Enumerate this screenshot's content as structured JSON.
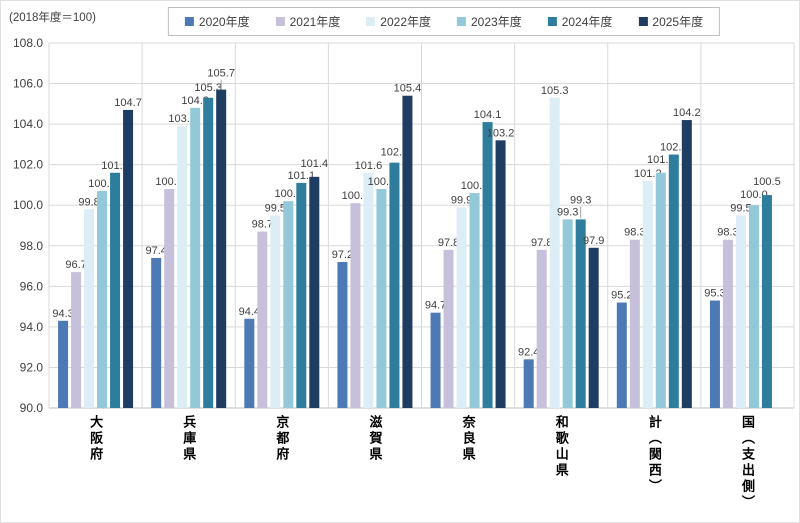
{
  "chart": {
    "note": "(2018年度＝100)"
  },
  "chart_data": {
    "type": "bar",
    "title": "(2018年度＝100)",
    "categories": [
      "大阪府",
      "兵庫県",
      "京都府",
      "滋賀県",
      "奈良県",
      "和歌山県",
      "計（関西）",
      "国（支出側）"
    ],
    "series": [
      {
        "name": "2020年度",
        "color": "#4d79b4",
        "values": [
          94.3,
          97.4,
          94.4,
          97.2,
          94.7,
          92.4,
          95.2,
          95.3
        ]
      },
      {
        "name": "2021年度",
        "color": "#c6c0da",
        "values": [
          96.7,
          100.8,
          98.7,
          100.1,
          97.8,
          97.8,
          98.3,
          98.3
        ]
      },
      {
        "name": "2022年度",
        "color": "#ddedf5",
        "values": [
          99.8,
          103.9,
          99.5,
          101.6,
          99.9,
          105.3,
          101.2,
          99.5
        ]
      },
      {
        "name": "2023年度",
        "color": "#92c8d8",
        "values": [
          100.7,
          104.8,
          100.2,
          100.8,
          100.6,
          99.3,
          101.6,
          100.0
        ]
      },
      {
        "name": "2024年度",
        "color": "#2e7d9c",
        "values": [
          101.6,
          105.3,
          101.1,
          102.1,
          104.1,
          99.3,
          102.5,
          100.5
        ]
      },
      {
        "name": "2025年度",
        "color": "#1f3c61",
        "values": [
          104.7,
          105.7,
          101.4,
          105.4,
          103.2,
          97.9,
          104.2,
          null
        ]
      }
    ],
    "ylim": [
      90.0,
      108.0
    ],
    "yticks": [
      90.0,
      92.0,
      94.0,
      96.0,
      98.0,
      100.0,
      102.0,
      104.0,
      106.0,
      108.0
    ],
    "xlabel": "",
    "ylabel": "",
    "grid": true,
    "legend_position": "top",
    "value_labels": true,
    "label_color": "#404040",
    "gridline_color": "#d9d9d9",
    "axis_line_color": "#bfbfbf",
    "leader_line_color": "#a6a6a6"
  }
}
